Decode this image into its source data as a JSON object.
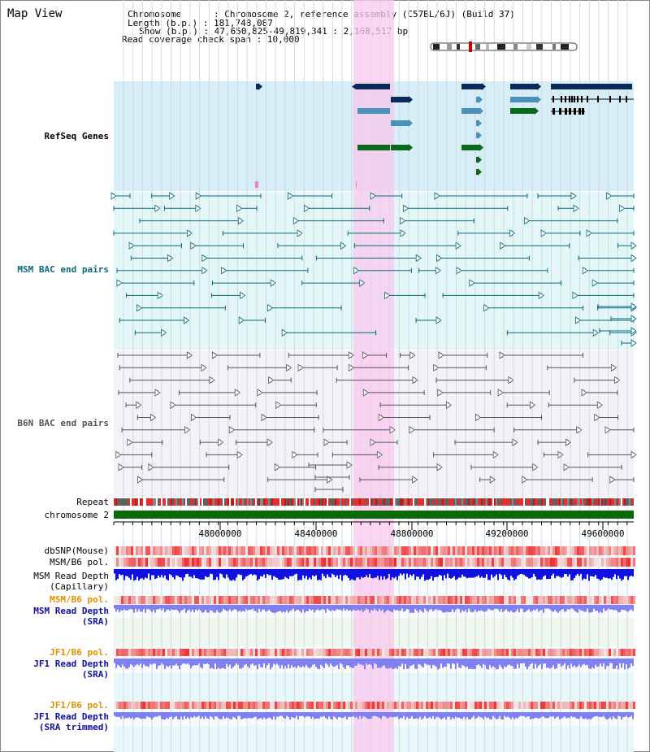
{
  "title": "Map View",
  "info": {
    "chromosome_key": "Chromosome",
    "chromosome_val": "Chromosome 2, reference assembly (C57BL/6J) (Build 37)",
    "length_key": "Length (b.p.)",
    "length_val": "181,748,087",
    "show_key": "Show (b.p.)",
    "show_val": "47,650,825-49,819,341 : 2,168,517 bp",
    "span_key": "Read coverage check span",
    "span_val": "10,000"
  },
  "tracks": {
    "refseq": "RefSeq Genes",
    "msm_bac": "MSM BAC end pairs",
    "b6n_bac": "B6N BAC end pairs",
    "repeat": "Repeat",
    "chromosome": "chromosome 2",
    "dbsnp": "dbSNP(Mouse)",
    "msm_b6_pol": "MSM/B6 pol.",
    "msm_depth_cap_1": "MSM Read Depth",
    "msm_depth_cap_2": "(Capillary)",
    "msm_b6_pol_2": "MSM/B6 pol.",
    "msm_depth_sra_1": "MSM Read Depth",
    "msm_depth_sra_2": "(SRA)",
    "jf1_pol": "JF1/B6 pol.",
    "jf1_depth_1": "JF1 Read Depth",
    "jf1_depth_2": "(SRA)",
    "jf1_pol_2": "JF1/B6 pol.",
    "jf1_trim_1": "JF1 Read Depth",
    "jf1_trim_2": "(SRA trimmed)"
  },
  "axis_ticks": [
    "48000000",
    "48400000",
    "48800000",
    "49200000",
    "49600000"
  ],
  "colors": {
    "refseq_bg": "#d6eef8",
    "msm_bac_bg": "#e3f7f9",
    "b6n_bg": "#f2f2f8",
    "highlight": "#f8c8ee",
    "gene_dark": "#0a2a5a",
    "gene_mid": "#4a90b8",
    "gene_green": "#0a6a1a",
    "msm_line": "#0a6a7a",
    "b6n_line": "#555555",
    "chrom_green": "#0a6a0a",
    "pol_red": "#f03030",
    "depth_blue": "#1010e0",
    "depth_light": "#8080f0",
    "orange_label": "#e09000",
    "navy_label": "#1010a0"
  }
}
